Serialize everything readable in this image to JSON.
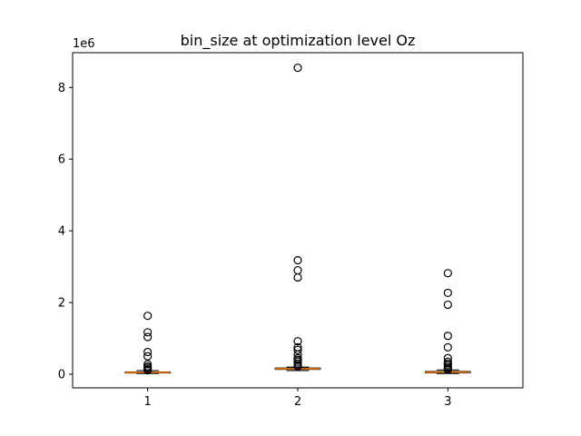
{
  "chart_data": {
    "type": "box",
    "title": "bin_size at optimization level Oz",
    "xlabel": "",
    "ylabel": "",
    "y_offset_label": "1e6",
    "y_scale_factor": 1000000,
    "ylim": [
      -0.38,
      8.97
    ],
    "xlim": [
      0.5,
      3.5
    ],
    "yticks": [
      0,
      2,
      4,
      6,
      8
    ],
    "categories": [
      "1",
      "2",
      "3"
    ],
    "colors": {
      "box": "#000000",
      "median": "#ff7f0e",
      "flier": "#000000"
    },
    "boxes": [
      {
        "category": "1",
        "whisker_low": 0.02,
        "q1": 0.035,
        "median": 0.05,
        "q3": 0.065,
        "whisker_high": 0.1,
        "fliers": [
          1.63,
          1.17,
          1.04,
          0.62,
          0.5,
          0.28,
          0.22,
          0.18,
          0.14,
          0.11
        ]
      },
      {
        "category": "2",
        "whisker_low": 0.1,
        "q1": 0.135,
        "median": 0.155,
        "q3": 0.175,
        "whisker_high": 0.2,
        "fliers": [
          8.55,
          3.18,
          2.9,
          2.7,
          0.92,
          0.75,
          0.68,
          0.55,
          0.45,
          0.4,
          0.35,
          0.3,
          0.25,
          0.22
        ]
      },
      {
        "category": "3",
        "whisker_low": 0.02,
        "q1": 0.04,
        "median": 0.06,
        "q3": 0.08,
        "whisker_high": 0.12,
        "fliers": [
          2.82,
          2.27,
          1.94,
          1.07,
          0.75,
          0.45,
          0.35,
          0.3,
          0.25,
          0.2,
          0.16,
          0.13
        ]
      }
    ]
  }
}
